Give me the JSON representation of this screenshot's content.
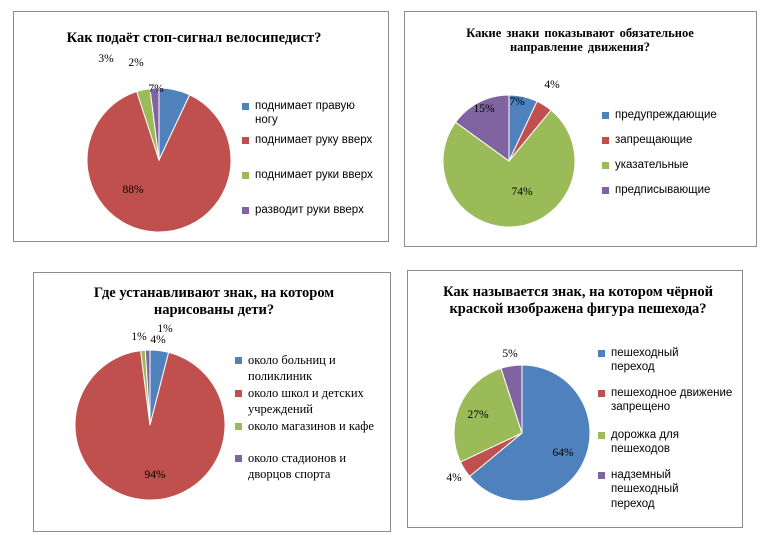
{
  "chart_data": [
    {
      "type": "pie",
      "title": "Как подаёт стоп-сигнал велосипедист?",
      "legend_position": "right",
      "categories": [
        "поднимает правую ногу",
        "поднимает руку вверх",
        "поднимает руки вверх",
        "разводит руки вверх"
      ],
      "values": [
        7,
        88,
        3,
        2
      ],
      "labels": [
        "7%",
        "88%",
        "3%",
        "2%"
      ],
      "colors": [
        "#4f81bd",
        "#c0504d",
        "#9bbb59",
        "#8064a2"
      ]
    },
    {
      "type": "pie",
      "title": "Какие знаки показывают обязательное направление движения?",
      "legend_position": "right",
      "categories": [
        "предупреждающие",
        "запрещающие",
        "указательные",
        "предписывающие"
      ],
      "values": [
        7,
        4,
        74,
        15
      ],
      "labels": [
        "7%",
        "4%",
        "74%",
        "15%"
      ],
      "colors": [
        "#4f81bd",
        "#c0504d",
        "#9bbb59",
        "#8064a2"
      ]
    },
    {
      "type": "pie",
      "title": "Где устанавливают знак, на котором нарисованы дети?",
      "legend_position": "right",
      "categories": [
        "около больниц и поликлиник",
        "около школ и детских учреждений",
        "около магазинов и кафе",
        "около стадионов и дворцов спорта"
      ],
      "values": [
        4,
        94,
        1,
        1
      ],
      "labels": [
        "4%",
        "94%",
        "1%",
        "1%"
      ],
      "colors": [
        "#4f81bd",
        "#c0504d",
        "#9bbb59",
        "#8064a2"
      ]
    },
    {
      "type": "pie",
      "title": "Как называется знак, на котором чёрной краской изображена фигура пешехода?",
      "legend_position": "right",
      "categories": [
        "пешеходный переход",
        "пешеходное движение запрещено",
        "дорожка для пешеходов",
        "надземный пешеходный переход"
      ],
      "values": [
        64,
        4,
        27,
        5
      ],
      "labels": [
        "64%",
        "4%",
        "27%",
        "5%"
      ],
      "colors": [
        "#4f81bd",
        "#c0504d",
        "#9bbb59",
        "#8064a2"
      ]
    }
  ]
}
